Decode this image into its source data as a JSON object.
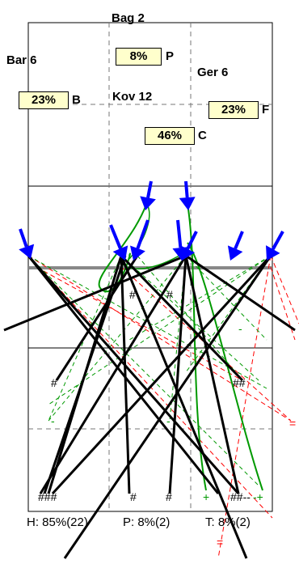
{
  "areas": {
    "top_center": "Bag 2",
    "left": "Bar 6",
    "right": "Ger 6",
    "center": "Kov 12"
  },
  "percent_boxes": [
    {
      "value": "8%",
      "letter": "P"
    },
    {
      "value": "23%",
      "letter": "B"
    },
    {
      "value": "23%",
      "letter": "F"
    },
    {
      "value": "46%",
      "letter": "C"
    }
  ],
  "marks": {
    "hash": "#",
    "double_hash": "##",
    "triple_hash": "###",
    "dash": "-",
    "plus": "+",
    "equals": "=",
    "double_hash_dash_dash": "##--",
    "dash_plus": "-+"
  },
  "footer": {
    "h": "H: 85%(22)",
    "p": "P: 8%(2)",
    "t": "T: 8%(2)"
  },
  "colors": {
    "arrow": "#0000ff",
    "green": "#009900",
    "red": "#ff0000",
    "box_fill": "#ffffcc",
    "divider": "#888888"
  }
}
